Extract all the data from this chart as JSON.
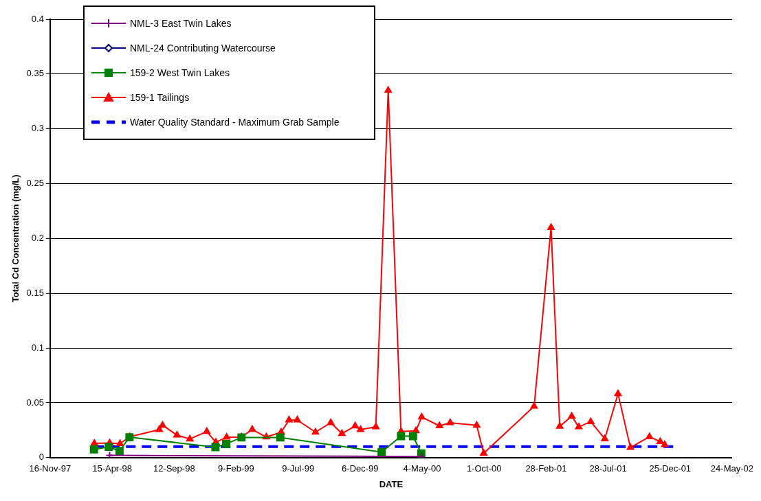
{
  "chart_data": {
    "type": "line",
    "xlabel": "DATE",
    "ylabel": "Total Cd Concentration (mg/L)",
    "xlim": [
      "1997-11-16",
      "2002-05-24"
    ],
    "xticks": [
      {
        "value": "1997-11-16",
        "label": "16-Nov-97"
      },
      {
        "value": "1998-04-15",
        "label": "15-Apr-98"
      },
      {
        "value": "1998-09-12",
        "label": "12-Sep-98"
      },
      {
        "value": "1999-02-09",
        "label": "9-Feb-99"
      },
      {
        "value": "1999-07-09",
        "label": "9-Jul-99"
      },
      {
        "value": "1999-12-06",
        "label": "6-Dec-99"
      },
      {
        "value": "2000-05-04",
        "label": "4-May-00"
      },
      {
        "value": "2000-10-01",
        "label": "1-Oct-00"
      },
      {
        "value": "2001-02-28",
        "label": "28-Feb-01"
      },
      {
        "value": "2001-07-28",
        "label": "28-Jul-01"
      },
      {
        "value": "2001-12-25",
        "label": "25-Dec-01"
      },
      {
        "value": "2002-05-24",
        "label": "24-May-02"
      }
    ],
    "ylim": [
      0,
      0.4
    ],
    "yticks": [
      0,
      0.05,
      0.1,
      0.15,
      0.2,
      0.25,
      0.3,
      0.35,
      0.4
    ],
    "grid": "y",
    "legend": "top left",
    "series": [
      {
        "name": "NML-3 East Twin Lakes",
        "color": "#800080",
        "marker": "cross",
        "x": [
          "1998-04-09",
          "2000-05-03"
        ],
        "values": [
          0.002,
          0.001
        ]
      },
      {
        "name": "NML-24 Contributing Watercourse",
        "color": "#000080",
        "marker": "diamond"
      },
      {
        "name": "159-2 West Twin Lakes",
        "color": "#008000",
        "marker": "square",
        "x": [
          "1998-03-02",
          "1998-04-07",
          "1998-05-03",
          "1998-05-27",
          "1998-12-21",
          "1999-01-16",
          "1999-02-22",
          "1999-05-27",
          "2000-01-27",
          "2000-03-14",
          "2000-04-12",
          "2000-05-02"
        ],
        "values": [
          0.0075,
          0.0098,
          0.006,
          0.0186,
          0.0096,
          0.0125,
          0.0184,
          0.0184,
          0.005,
          0.0196,
          0.0196,
          0.0038
        ]
      },
      {
        "name": "159-1 Tailings",
        "color": "#ff0000",
        "marker": "triangle",
        "x": [
          "1998-03-03",
          "1998-04-09",
          "1998-05-04",
          "1998-05-27",
          "1998-08-07",
          "1998-08-15",
          "1998-09-19",
          "1998-10-20",
          "1998-11-30",
          "1998-12-22",
          "1999-01-17",
          "1999-02-22",
          "1999-03-20",
          "1999-04-23",
          "1999-05-29",
          "1999-06-17",
          "1999-07-07",
          "1999-08-20",
          "1999-09-26",
          "1999-10-23",
          "1999-11-24",
          "1999-12-07",
          "2000-01-13",
          "2000-02-12",
          "2000-03-14",
          "2000-04-19",
          "2000-05-03",
          "2000-06-15",
          "2000-07-11",
          "2000-09-13",
          "2000-09-30",
          "2001-01-30",
          "2001-03-12",
          "2001-04-02",
          "2001-05-01",
          "2001-05-18",
          "2001-06-16",
          "2001-07-20",
          "2001-08-21",
          "2001-09-20",
          "2001-11-05",
          "2001-12-01",
          "2001-12-12"
        ],
        "values": [
          0.013,
          0.0134,
          0.0127,
          0.019,
          0.0255,
          0.0295,
          0.0205,
          0.017,
          0.0238,
          0.014,
          0.0186,
          0.0188,
          0.0257,
          0.0188,
          0.0232,
          0.0343,
          0.0343,
          0.0232,
          0.0318,
          0.022,
          0.0288,
          0.0255,
          0.028,
          0.335,
          0.0238,
          0.0244,
          0.037,
          0.029,
          0.0318,
          0.0295,
          0.004,
          0.0468,
          0.21,
          0.0286,
          0.0378,
          0.028,
          0.0328,
          0.0171,
          0.0583,
          0.0092,
          0.019,
          0.0146,
          0.0117
        ]
      },
      {
        "name": "Water Quality Standard - Maximum Grab Sample",
        "color": "#0000ff",
        "marker": "none",
        "line_style": "dashed",
        "x": [
          "1998-03-03",
          "2002-01-05"
        ],
        "values": [
          0.01,
          0.01
        ]
      }
    ]
  }
}
